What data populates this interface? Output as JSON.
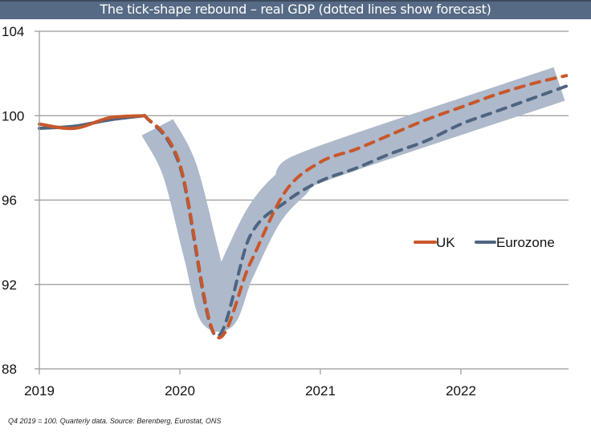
{
  "header": {
    "title": "The tick-shape rebound – real GDP (dotted lines show forecast)"
  },
  "footnote": "Q4 2019 = 100. Quarterly data. Source: Berenberg, Eurostat, ONS",
  "colors": {
    "uk": "#c8572b",
    "eurozone": "#4e6480",
    "band": "#aeb9cb",
    "grid": "#9a9a9a",
    "title_bg": "#566a85"
  },
  "chart_data": {
    "type": "line",
    "title": "The tick-shape rebound – real GDP (dotted lines show forecast)",
    "xlabel": "",
    "ylabel": "",
    "ylim": [
      88,
      104
    ],
    "yticks": [
      "88",
      "92",
      "96",
      "100",
      "104"
    ],
    "ytick_values": [
      88,
      92,
      96,
      100,
      104
    ],
    "xticks": [
      "2019",
      "2020",
      "2021",
      "2022"
    ],
    "xtick_values": [
      2019,
      2020,
      2021,
      2022
    ],
    "xlim": [
      2019,
      2022.75
    ],
    "grid": true,
    "legend": {
      "placement": "right-middle",
      "entries": [
        "UK",
        "Eurozone"
      ]
    },
    "x": [
      2019.0,
      2019.25,
      2019.5,
      2019.75,
      2020.0,
      2020.25,
      2020.5,
      2020.75,
      2021.0,
      2021.25,
      2021.5,
      2021.75,
      2022.0,
      2022.25,
      2022.5,
      2022.75
    ],
    "forecast_start": 2019.75,
    "series": [
      {
        "name": "UK",
        "values": [
          99.6,
          99.4,
          99.9,
          100.0,
          97.7,
          89.6,
          93.0,
          96.4,
          97.8,
          98.4,
          99.1,
          99.8,
          100.4,
          101.0,
          101.5,
          101.9
        ]
      },
      {
        "name": "Eurozone",
        "values": [
          99.4,
          99.5,
          99.8,
          100.0,
          97.6,
          89.6,
          94.3,
          95.9,
          96.9,
          97.5,
          98.2,
          98.8,
          99.6,
          100.2,
          100.8,
          101.4
        ]
      }
    ],
    "annotation": "Shaded tick-shaped band highlights forecast path"
  }
}
